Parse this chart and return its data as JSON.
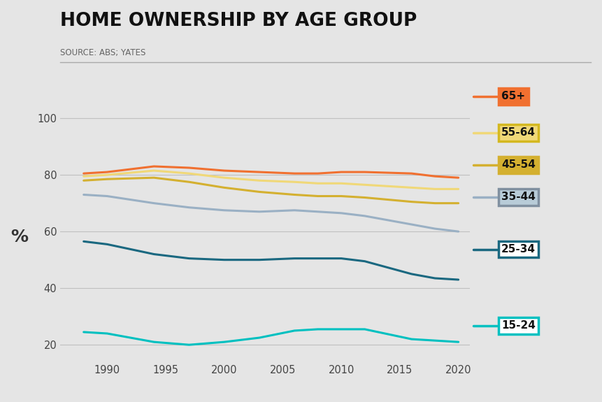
{
  "title": "HOME OWNERSHIP BY AGE GROUP",
  "source": "SOURCE: ABS; YATES",
  "ylabel": "%",
  "background_color": "#e5e5e5",
  "plot_bg_color": "#e5e5e5",
  "series": [
    {
      "label": "65+",
      "color": "#f07030",
      "box_facecolor": "#f07030",
      "box_edgecolor": "#f07030",
      "data_years": [
        1988,
        1990,
        1994,
        1997,
        2000,
        2003,
        2006,
        2008,
        2010,
        2012,
        2016,
        2018,
        2020
      ],
      "values": [
        80.5,
        81.0,
        83.0,
        82.5,
        81.5,
        81.0,
        80.5,
        80.5,
        81.0,
        81.0,
        80.5,
        79.5,
        79.0
      ]
    },
    {
      "label": "55-64",
      "color": "#f0d878",
      "box_facecolor": "#f0d878",
      "box_edgecolor": "#d4b820",
      "data_years": [
        1988,
        1990,
        1994,
        1997,
        2000,
        2003,
        2006,
        2008,
        2010,
        2012,
        2016,
        2018,
        2020
      ],
      "values": [
        79.5,
        80.0,
        81.5,
        80.5,
        79.0,
        78.0,
        77.5,
        77.0,
        77.0,
        76.5,
        75.5,
        75.0,
        75.0
      ]
    },
    {
      "label": "45-54",
      "color": "#d4b030",
      "box_facecolor": "#d4b030",
      "box_edgecolor": "#d4b030",
      "data_years": [
        1988,
        1990,
        1994,
        1997,
        2000,
        2003,
        2006,
        2008,
        2010,
        2012,
        2016,
        2018,
        2020
      ],
      "values": [
        78.0,
        78.5,
        79.0,
        77.5,
        75.5,
        74.0,
        73.0,
        72.5,
        72.5,
        72.0,
        70.5,
        70.0,
        70.0
      ]
    },
    {
      "label": "35-44",
      "color": "#9ab0c4",
      "box_facecolor": "#b8ccd8",
      "box_edgecolor": "#8090a0",
      "data_years": [
        1988,
        1990,
        1994,
        1997,
        2000,
        2003,
        2006,
        2008,
        2010,
        2012,
        2016,
        2018,
        2020
      ],
      "values": [
        73.0,
        72.5,
        70.0,
        68.5,
        67.5,
        67.0,
        67.5,
        67.0,
        66.5,
        65.5,
        62.5,
        61.0,
        60.0
      ]
    },
    {
      "label": "25-34",
      "color": "#1a6880",
      "box_facecolor": "#ffffff",
      "box_edgecolor": "#1a6880",
      "data_years": [
        1988,
        1990,
        1994,
        1997,
        2000,
        2003,
        2006,
        2008,
        2010,
        2012,
        2016,
        2018,
        2020
      ],
      "values": [
        56.5,
        55.5,
        52.0,
        50.5,
        50.0,
        50.0,
        50.5,
        50.5,
        50.5,
        49.5,
        45.0,
        43.5,
        43.0
      ]
    },
    {
      "label": "15-24",
      "color": "#00c0c0",
      "box_facecolor": "#ffffff",
      "box_edgecolor": "#00c0c0",
      "data_years": [
        1988,
        1990,
        1994,
        1997,
        2000,
        2003,
        2006,
        2008,
        2010,
        2012,
        2016,
        2018,
        2020
      ],
      "values": [
        24.5,
        24.0,
        21.0,
        20.0,
        21.0,
        22.5,
        25.0,
        25.5,
        25.5,
        25.5,
        22.0,
        21.5,
        21.0
      ]
    }
  ],
  "ylim": [
    14,
    102
  ],
  "yticks": [
    20,
    40,
    60,
    80,
    100
  ],
  "xticks": [
    1990,
    1995,
    2000,
    2005,
    2010,
    2015,
    2020
  ],
  "xlim": [
    1986,
    2021
  ],
  "linewidth": 2.2,
  "grid_color": "#c0c0c0",
  "title_fontsize": 19,
  "source_fontsize": 8.5,
  "tick_fontsize": 10.5,
  "ylabel_fontsize": 18
}
